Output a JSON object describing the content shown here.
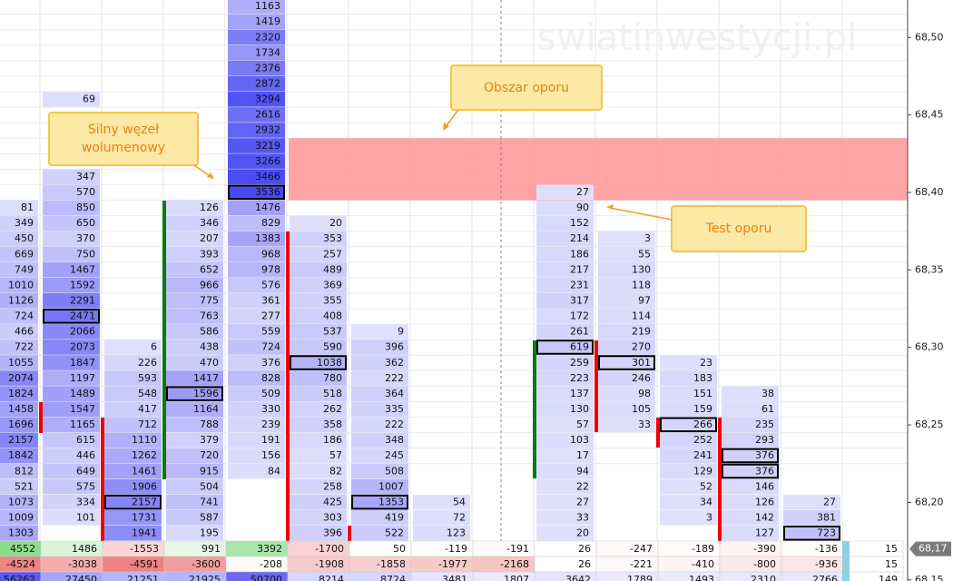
{
  "watermark": "swiatinwestycji.pl",
  "annotations": [
    {
      "lines": [
        "Silny węzeł",
        "wolumenowy"
      ]
    },
    {
      "lines": [
        "Obszar oporu"
      ]
    },
    {
      "lines": [
        "Test oporu"
      ]
    }
  ],
  "price_axis": {
    "ticks": [
      {
        "value": 68.5,
        "label": "68,50"
      },
      {
        "value": 68.45,
        "label": "68,45"
      },
      {
        "value": 68.4,
        "label": "68,40"
      },
      {
        "value": 68.35,
        "label": "68,35"
      },
      {
        "value": 68.3,
        "label": "68,30"
      },
      {
        "value": 68.25,
        "label": "68,25"
      },
      {
        "value": 68.2,
        "label": "68,20"
      },
      {
        "value": 68.15,
        "label": "68,15"
      }
    ],
    "current": {
      "value": 68.17,
      "label": "68,17"
    },
    "resistance_zone": [
      68.395,
      68.435
    ]
  },
  "columns": [
    {
      "top_price": 68.39,
      "poc": false,
      "values": [
        81,
        349,
        450,
        669,
        749,
        1010,
        1126,
        724,
        466,
        722,
        1055,
        2074,
        1824,
        1458,
        1696,
        2157,
        1842,
        812,
        521,
        1073,
        1009,
        1303
      ]
    },
    {
      "top_price": 68.46,
      "poc": true,
      "values": [
        69,
        null,
        null,
        null,
        null,
        347,
        570,
        850,
        650,
        370,
        750,
        1467,
        1592,
        2291,
        2471,
        2066,
        2073,
        1847,
        1197,
        1489,
        1547,
        1165,
        615,
        446,
        649,
        575,
        334,
        101
      ]
    },
    {
      "top_price": 68.3,
      "poc": true,
      "values": [
        6,
        226,
        593,
        548,
        417,
        712,
        1110,
        1262,
        1461,
        1906,
        2157,
        1731,
        1941
      ]
    },
    {
      "top_price": 68.39,
      "poc": true,
      "values": [
        126,
        346,
        207,
        393,
        652,
        966,
        775,
        763,
        586,
        438,
        470,
        1417,
        1596,
        1164,
        788,
        379,
        720,
        915,
        504,
        741,
        587,
        195
      ]
    },
    {
      "top_price": 68.52,
      "poc": true,
      "values": [
        1163,
        1419,
        2320,
        1734,
        2376,
        2872,
        3294,
        2616,
        2932,
        3219,
        3266,
        3466,
        3536,
        1476,
        829,
        1383,
        968,
        978,
        576,
        361,
        277,
        559,
        724,
        376,
        828,
        509,
        330,
        239,
        191,
        156,
        84
      ]
    },
    {
      "top_price": 68.38,
      "poc": true,
      "values": [
        20,
        353,
        257,
        489,
        369,
        355,
        408,
        537,
        590,
        1038,
        780,
        518,
        262,
        358,
        186,
        57,
        82,
        258,
        425,
        303,
        396
      ]
    },
    {
      "top_price": 68.31,
      "poc": true,
      "values": [
        9,
        396,
        362,
        222,
        364,
        335,
        222,
        348,
        245,
        508,
        1007,
        1353,
        419,
        522
      ]
    },
    {
      "top_price": 68.2,
      "poc": false,
      "values": [
        54,
        72,
        123
      ]
    },
    {
      "top_price": 68.2,
      "poc": false,
      "values": []
    },
    {
      "top_price": 68.4,
      "poc": true,
      "values": [
        27,
        90,
        152,
        214,
        186,
        217,
        231,
        317,
        172,
        261,
        619,
        259,
        223,
        137,
        130,
        57,
        103,
        17,
        94,
        22,
        27,
        33,
        20
      ]
    },
    {
      "top_price": 68.37,
      "poc": true,
      "values": [
        3,
        55,
        130,
        118,
        97,
        114,
        219,
        270,
        301,
        246,
        98,
        105,
        33
      ]
    },
    {
      "top_price": 68.29,
      "poc": true,
      "values": [
        23,
        183,
        151,
        159,
        266,
        252,
        241,
        129,
        52,
        34,
        3
      ]
    },
    {
      "top_price": 68.27,
      "poc": true,
      "values": [
        38,
        61,
        235,
        293,
        376,
        376,
        146,
        126,
        142,
        127
      ]
    },
    {
      "top_price": 68.2,
      "poc": true,
      "values": [
        27,
        381,
        723
      ]
    }
  ],
  "summary": {
    "rows": [
      [
        4552,
        1486,
        -1553,
        991,
        3392,
        -1700,
        50,
        -119,
        -191,
        26,
        -247,
        -189,
        -390,
        -136,
        15
      ],
      [
        -4524,
        -3038,
        -4591,
        -3600,
        -208,
        -1908,
        -1858,
        -1977,
        -2168,
        26,
        -221,
        -410,
        -800,
        -936,
        15
      ],
      [
        56262,
        27450,
        21251,
        21925,
        50700,
        8214,
        8724,
        3481,
        1807,
        3642,
        1789,
        1493,
        2310,
        2766,
        149
      ]
    ]
  }
}
